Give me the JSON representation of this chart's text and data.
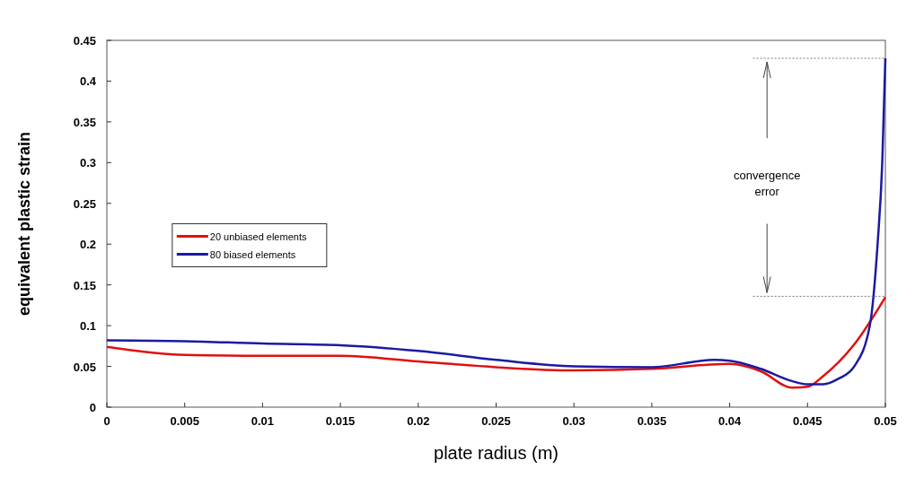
{
  "chart_data": {
    "type": "line",
    "xlabel": "plate radius (m)",
    "ylabel": "equivalent plastic strain",
    "xlim": [
      0,
      0.05
    ],
    "xticks": [
      0,
      0.005,
      0.01,
      0.015,
      0.02,
      0.025,
      0.03,
      0.035,
      0.04,
      0.045,
      0.05
    ],
    "ylim": [
      0,
      0.45
    ],
    "yticks": [
      0,
      0.05,
      0.1,
      0.15,
      0.2,
      0.25,
      0.3,
      0.35,
      0.4,
      0.45
    ],
    "legend": "left",
    "grid": false,
    "marker": "none",
    "line_style": "solid",
    "annotations": [
      "convergence error"
    ],
    "series": [
      {
        "name": "20 unbiased elements",
        "color": "#e01010",
        "x": [
          0,
          0.005,
          0.01,
          0.015,
          0.02,
          0.025,
          0.03,
          0.035,
          0.04,
          0.042,
          0.044,
          0.045,
          0.046,
          0.048,
          0.05
        ],
        "values": [
          0.074,
          0.064,
          0.063,
          0.063,
          0.056,
          0.049,
          0.045,
          0.047,
          0.053,
          0.044,
          0.024,
          0.025,
          0.038,
          0.077,
          0.135
        ]
      },
      {
        "name": "80 biased elements",
        "color": "#1a1aa0",
        "x": [
          0,
          0.005,
          0.01,
          0.015,
          0.02,
          0.025,
          0.03,
          0.035,
          0.039,
          0.04,
          0.042,
          0.044,
          0.045,
          0.046,
          0.047,
          0.048,
          0.049,
          0.0495,
          0.0498,
          0.05
        ],
        "values": [
          0.082,
          0.081,
          0.078,
          0.076,
          0.069,
          0.058,
          0.05,
          0.049,
          0.058,
          0.057,
          0.047,
          0.032,
          0.028,
          0.028,
          0.035,
          0.05,
          0.1,
          0.2,
          0.3,
          0.428
        ]
      }
    ]
  }
}
